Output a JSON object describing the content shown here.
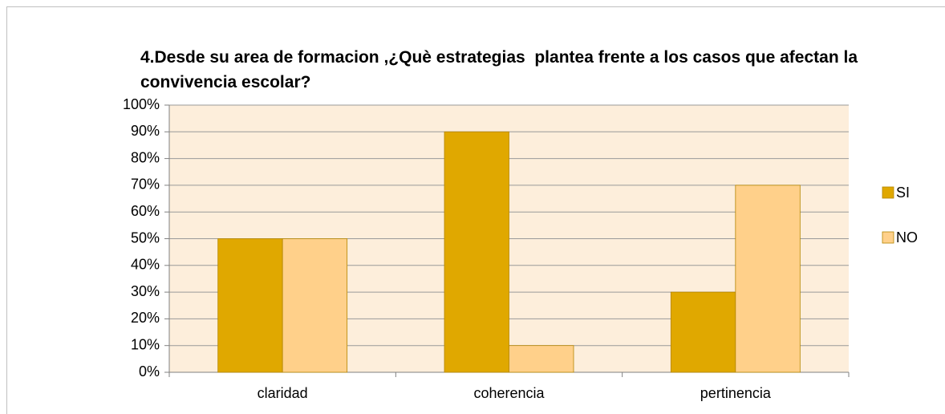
{
  "chart_data": {
    "type": "bar",
    "title": "4.Desde su area de formacion ,¿Què estrategias  plantea frente a los casos que afectan la convivencia escolar?",
    "categories": [
      "claridad",
      "coherencia",
      "pertinencia"
    ],
    "series": [
      {
        "name": "SI",
        "color": "#e0a800",
        "values": [
          50,
          90,
          30
        ]
      },
      {
        "name": "NO",
        "color": "#ffd08a",
        "values": [
          50,
          10,
          70
        ]
      }
    ],
    "ylim": [
      0,
      100
    ],
    "yticks": [
      {
        "value": 0,
        "label": "0%"
      },
      {
        "value": 10,
        "label": "10%"
      },
      {
        "value": 20,
        "label": "20%"
      },
      {
        "value": 30,
        "label": "30%"
      },
      {
        "value": 40,
        "label": "40%"
      },
      {
        "value": 50,
        "label": "50%"
      },
      {
        "value": 60,
        "label": "60%"
      },
      {
        "value": 70,
        "label": "70%"
      },
      {
        "value": 80,
        "label": "80%"
      },
      {
        "value": 90,
        "label": "90%"
      },
      {
        "value": 100,
        "label": "100%"
      }
    ],
    "grid": true,
    "legend": "right"
  }
}
